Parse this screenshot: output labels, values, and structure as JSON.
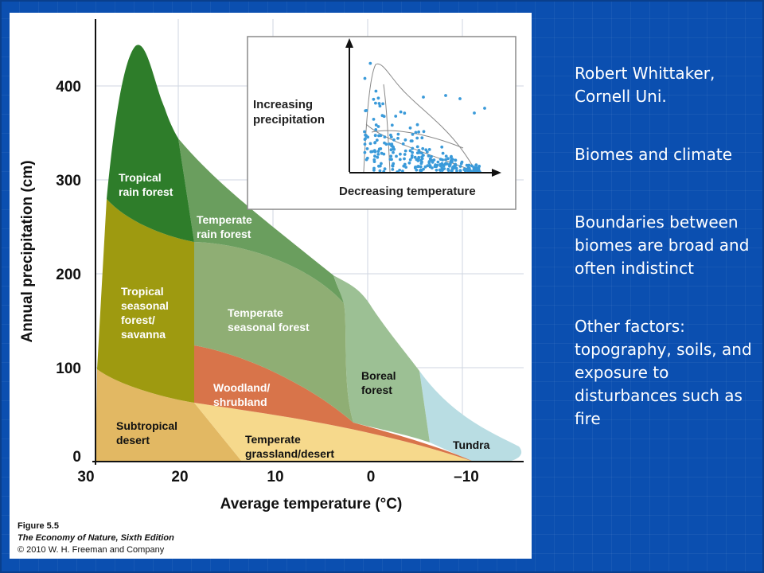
{
  "figure": {
    "y_axis_label": "Annual precipitation (cm)",
    "x_axis_label": "Average temperature (°C)",
    "y_ticks": [
      "400",
      "300",
      "200",
      "100",
      "0"
    ],
    "x_ticks": [
      "30",
      "20",
      "10",
      "0",
      "–10"
    ],
    "biomes": {
      "tropical_rain_forest": [
        "Tropical",
        "rain forest"
      ],
      "temperate_rain_forest": [
        "Temperate",
        "rain forest"
      ],
      "tropical_seasonal": [
        "Tropical",
        "seasonal",
        "forest/",
        "savanna"
      ],
      "temperate_seasonal": [
        "Temperate",
        "seasonal forest"
      ],
      "woodland": [
        "Woodland/",
        "shrubland"
      ],
      "boreal": [
        "Boreal",
        "forest"
      ],
      "subtropical_desert": [
        "Subtropical",
        "desert"
      ],
      "temperate_grassland": [
        "Temperate",
        "grassland/desert"
      ],
      "tundra": "Tundra"
    },
    "biome_colors": {
      "tropical_rain_forest": "#2e7d2a",
      "temperate_rain_forest": "#6a9e5e",
      "tropical_seasonal": "#9e9a10",
      "temperate_seasonal": "#8fae74",
      "woodland": "#d8744a",
      "boreal": "#9cc094",
      "subtropical_desert": "#e2b863",
      "temperate_grassland": "#f6d98c",
      "tundra": "#b9dde3"
    },
    "inset": {
      "y_label": [
        "Increasing",
        "precipitation"
      ],
      "x_label": "Decreasing temperature",
      "point_color": "#3a9ad9"
    },
    "caption": {
      "figure_no": "Figure 5.5",
      "book": "The Economy of Nature, Sixth Edition",
      "copyright": "© 2010 W. H. Freeman and Company"
    }
  },
  "notes": {
    "credit": "Robert Whittaker, Cornell Uni.",
    "topic": "Biomes and climate",
    "boundaries": "Boundaries between biomes are broad and often indistinct",
    "other": "Other factors: topography, soils, and exposure to disturbances such as fire"
  }
}
